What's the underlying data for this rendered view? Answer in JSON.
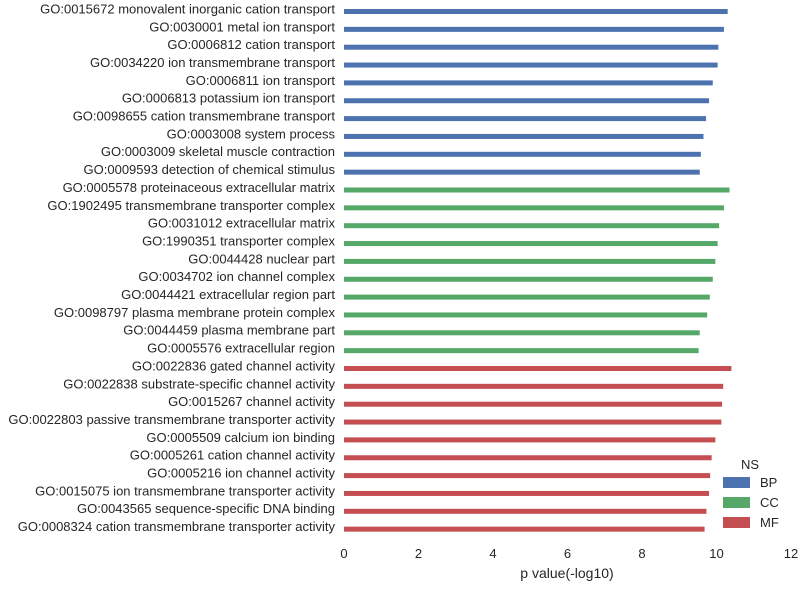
{
  "chart_data": {
    "type": "bar",
    "orientation": "horizontal",
    "xlabel": "p value(-log10)",
    "xlim": [
      0,
      12
    ],
    "xticks": [
      0,
      2,
      4,
      6,
      8,
      10,
      12
    ],
    "grid": false,
    "legend": {
      "title": "NS",
      "placement": "bottom-right",
      "entries": [
        {
          "name": "BP",
          "color": "#4c72b0"
        },
        {
          "name": "CC",
          "color": "#55a868"
        },
        {
          "name": "MF",
          "color": "#c44e52"
        }
      ]
    },
    "categories": [
      {
        "label": "GO:0015672 monovalent inorganic cation transport",
        "ns": "BP",
        "value": 10.3
      },
      {
        "label": "GO:0030001 metal ion transport",
        "ns": "BP",
        "value": 10.2
      },
      {
        "label": "GO:0006812 cation transport",
        "ns": "BP",
        "value": 10.05
      },
      {
        "label": "GO:0034220 ion transmembrane transport",
        "ns": "BP",
        "value": 10.03
      },
      {
        "label": "GO:0006811 ion transport",
        "ns": "BP",
        "value": 9.9
      },
      {
        "label": "GO:0006813 potassium ion transport",
        "ns": "BP",
        "value": 9.8
      },
      {
        "label": "GO:0098655 cation transmembrane transport",
        "ns": "BP",
        "value": 9.72
      },
      {
        "label": "GO:0003008 system process",
        "ns": "BP",
        "value": 9.65
      },
      {
        "label": "GO:0003009 skeletal muscle contraction",
        "ns": "BP",
        "value": 9.58
      },
      {
        "label": "GO:0009593 detection of chemical stimulus",
        "ns": "BP",
        "value": 9.55
      },
      {
        "label": "GO:0005578 proteinaceous extracellular matrix",
        "ns": "CC",
        "value": 10.35
      },
      {
        "label": "GO:1902495 transmembrane transporter complex",
        "ns": "CC",
        "value": 10.2
      },
      {
        "label": "GO:0031012 extracellular matrix",
        "ns": "CC",
        "value": 10.07
      },
      {
        "label": "GO:1990351 transporter complex",
        "ns": "CC",
        "value": 10.03
      },
      {
        "label": "GO:0044428 nuclear part",
        "ns": "CC",
        "value": 9.97
      },
      {
        "label": "GO:0034702 ion channel complex",
        "ns": "CC",
        "value": 9.9
      },
      {
        "label": "GO:0044421 extracellular region part",
        "ns": "CC",
        "value": 9.82
      },
      {
        "label": "GO:0098797 plasma membrane protein complex",
        "ns": "CC",
        "value": 9.75
      },
      {
        "label": "GO:0044459 plasma membrane part",
        "ns": "CC",
        "value": 9.55
      },
      {
        "label": "GO:0005576 extracellular region",
        "ns": "CC",
        "value": 9.52
      },
      {
        "label": "GO:0022836 gated channel activity",
        "ns": "MF",
        "value": 10.4
      },
      {
        "label": "GO:0022838 substrate-specific channel activity",
        "ns": "MF",
        "value": 10.18
      },
      {
        "label": "GO:0015267 channel activity",
        "ns": "MF",
        "value": 10.15
      },
      {
        "label": "GO:0022803 passive transmembrane transporter activity",
        "ns": "MF",
        "value": 10.13
      },
      {
        "label": "GO:0005509 calcium ion binding",
        "ns": "MF",
        "value": 9.97
      },
      {
        "label": "GO:0005261 cation channel activity",
        "ns": "MF",
        "value": 9.87
      },
      {
        "label": "GO:0005216 ion channel activity",
        "ns": "MF",
        "value": 9.83
      },
      {
        "label": "GO:0015075 ion transmembrane transporter activity",
        "ns": "MF",
        "value": 9.8
      },
      {
        "label": "GO:0043565 sequence-specific DNA binding",
        "ns": "MF",
        "value": 9.73
      },
      {
        "label": "GO:0008324 cation transmembrane transporter activity",
        "ns": "MF",
        "value": 9.68
      }
    ]
  }
}
